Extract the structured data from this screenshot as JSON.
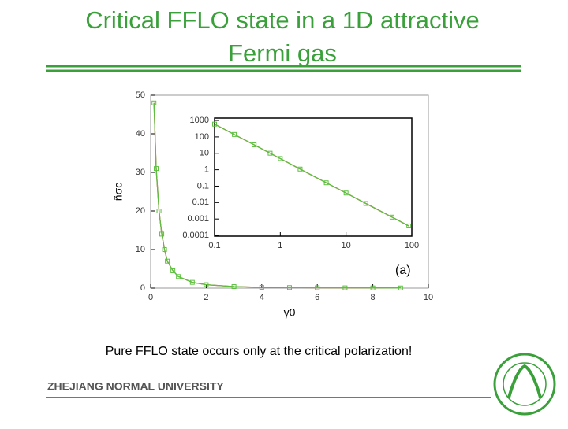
{
  "slide": {
    "title_line1": "Critical FFLO state in a 1D attractive",
    "title_line2": "Fermi gas",
    "caption": "Pure FFLO state occurs only at the critical polarization!",
    "footer": "ZHEJIANG NORMAL UNIVERSITY"
  },
  "chart_data": [
    {
      "type": "line",
      "xlabel": "γ0",
      "ylabel": "ñσc",
      "annotation": "(a)",
      "x": [
        0.12,
        0.2,
        0.3,
        0.4,
        0.5,
        0.6,
        0.8,
        1,
        1.5,
        2,
        3,
        4,
        5,
        6,
        7,
        8,
        9
      ],
      "series": [
        {
          "color": "#e03030",
          "values": [
            48,
            31,
            20,
            14,
            10,
            7,
            4.5,
            3,
            1.5,
            0.9,
            0.4,
            0.2,
            0.15,
            0.1,
            0.08,
            0.06,
            0.05
          ]
        },
        {
          "color": "#5cc040",
          "marker": "square",
          "values": [
            48,
            31,
            20,
            14,
            10,
            7,
            4.5,
            3,
            1.5,
            0.9,
            0.4,
            0.2,
            0.15,
            0.1,
            0.08,
            0.06,
            0.05
          ]
        }
      ],
      "xlim": [
        0,
        10
      ],
      "ylim": [
        0,
        50
      ],
      "xticks": [
        0,
        2,
        4,
        6,
        8,
        10
      ],
      "yticks": [
        0,
        10,
        20,
        30,
        40,
        50
      ]
    },
    {
      "type": "line",
      "xlog": true,
      "ylog": true,
      "x": [
        0.1,
        0.2,
        0.4,
        0.7,
        1,
        2,
        5,
        10,
        20,
        50,
        90
      ],
      "series": [
        {
          "color": "#e03030",
          "values": [
            600,
            140,
            33,
            10.1,
            4.8,
            1.1,
            0.16,
            0.038,
            0.0088,
            0.0013,
            0.00038
          ]
        },
        {
          "color": "#5cc040",
          "marker": "square",
          "values": [
            600,
            140,
            33,
            10.1,
            4.8,
            1.1,
            0.16,
            0.038,
            0.0088,
            0.0013,
            0.00038
          ]
        }
      ],
      "xlim": [
        0.1,
        100
      ],
      "ylim": [
        9e-05,
        1400
      ],
      "xticks": [
        0.1,
        1,
        10,
        100
      ],
      "yticks": [
        1000,
        100,
        10,
        1,
        0.1,
        0.01,
        0.001,
        0.0001
      ]
    }
  ]
}
